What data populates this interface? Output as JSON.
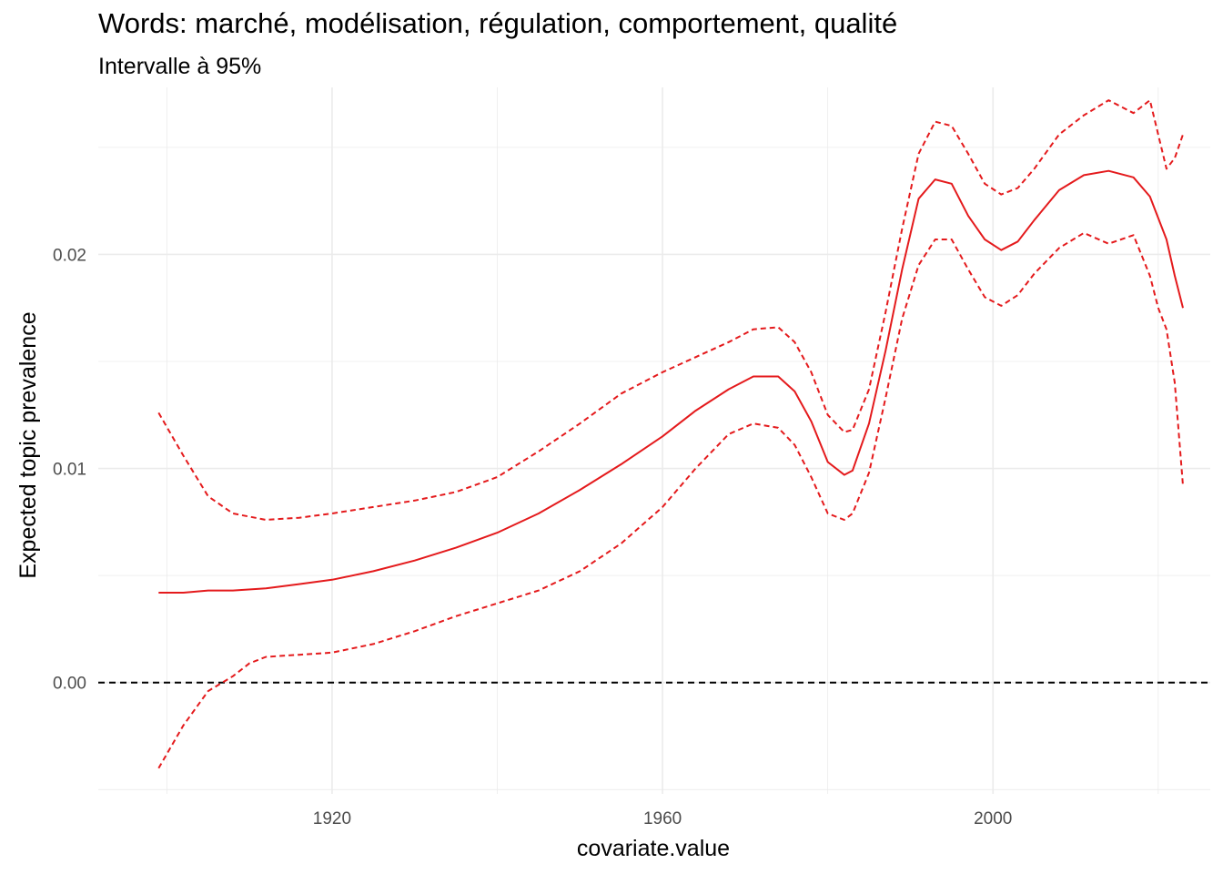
{
  "chart_data": {
    "type": "line",
    "title": "Words: marché, modélisation, régulation, comportement, qualité",
    "subtitle": "Intervalle à 95%",
    "xlabel": "covariate.value",
    "ylabel": "Expected topic prevalence",
    "xlim": [
      1891.7,
      2026.3
    ],
    "ylim": [
      -0.0052,
      0.0278
    ],
    "x_ticks": [
      {
        "value": 1920,
        "label": "1920"
      },
      {
        "value": 1960,
        "label": "1960"
      },
      {
        "value": 2000,
        "label": "2000"
      }
    ],
    "y_ticks": [
      {
        "value": 0.0,
        "label": "0.00"
      },
      {
        "value": 0.01,
        "label": "0.01"
      },
      {
        "value": 0.02,
        "label": "0.02"
      }
    ],
    "x_minor": [
      1900,
      1940,
      1980,
      2020
    ],
    "y_minor": [
      -0.005,
      0.005,
      0.015,
      0.025
    ],
    "grid": true,
    "reference_line": {
      "y": 0,
      "style": "dashed",
      "color": "#000000"
    },
    "colors": {
      "series": "#e41a1c",
      "grid": "#ebebeb",
      "background": "#ffffff"
    },
    "series": [
      {
        "role": "estimate",
        "style": "solid",
        "x": [
          1899,
          1902,
          1905,
          1908,
          1912,
          1916,
          1920,
          1925,
          1930,
          1935,
          1940,
          1945,
          1950,
          1955,
          1960,
          1964,
          1968,
          1971,
          1974,
          1976,
          1978,
          1980,
          1982,
          1983,
          1985,
          1987,
          1989,
          1991,
          1993,
          1995,
          1997,
          1999,
          2001,
          2003,
          2005,
          2008,
          2011,
          2014,
          2017,
          2019,
          2021,
          2022,
          2023
        ],
        "values": [
          0.0042,
          0.0042,
          0.0043,
          0.0043,
          0.0044,
          0.0046,
          0.0048,
          0.0052,
          0.0057,
          0.0063,
          0.007,
          0.0079,
          0.009,
          0.0102,
          0.0115,
          0.0127,
          0.0137,
          0.0143,
          0.0143,
          0.0136,
          0.0122,
          0.0103,
          0.0097,
          0.0099,
          0.0121,
          0.0155,
          0.0193,
          0.0226,
          0.0235,
          0.0233,
          0.0218,
          0.0207,
          0.0202,
          0.0206,
          0.0216,
          0.023,
          0.0237,
          0.0239,
          0.0236,
          0.0227,
          0.0207,
          0.019,
          0.0175
        ]
      },
      {
        "role": "upper 95%",
        "style": "dashed",
        "x": [
          1899,
          1902,
          1905,
          1908,
          1912,
          1916,
          1920,
          1925,
          1930,
          1935,
          1940,
          1945,
          1950,
          1955,
          1960,
          1964,
          1968,
          1971,
          1974,
          1976,
          1978,
          1980,
          1982,
          1983,
          1985,
          1987,
          1989,
          1991,
          1993,
          1995,
          1997,
          1999,
          2001,
          2003,
          2005,
          2008,
          2011,
          2014,
          2015,
          2017,
          2019,
          2021,
          2022,
          2023
        ],
        "values": [
          0.0126,
          0.0106,
          0.0087,
          0.0079,
          0.0076,
          0.0077,
          0.0079,
          0.0082,
          0.0085,
          0.0089,
          0.0096,
          0.0108,
          0.0121,
          0.0135,
          0.0145,
          0.0152,
          0.0159,
          0.0165,
          0.0166,
          0.0159,
          0.0145,
          0.0125,
          0.0117,
          0.0118,
          0.0137,
          0.0173,
          0.0212,
          0.0247,
          0.0262,
          0.026,
          0.0247,
          0.0233,
          0.0228,
          0.0231,
          0.024,
          0.0256,
          0.0265,
          0.0272,
          0.027,
          0.0266,
          0.0272,
          0.024,
          0.0245,
          0.0256
        ]
      },
      {
        "role": "lower 95%",
        "style": "dashed",
        "x": [
          1899,
          1902,
          1905,
          1908,
          1910,
          1912,
          1916,
          1920,
          1925,
          1930,
          1935,
          1940,
          1945,
          1950,
          1955,
          1960,
          1964,
          1968,
          1971,
          1974,
          1976,
          1978,
          1980,
          1982,
          1983,
          1985,
          1987,
          1989,
          1991,
          1993,
          1995,
          1997,
          1999,
          2001,
          2003,
          2005,
          2008,
          2011,
          2014,
          2017,
          2019,
          2020,
          2021,
          2022,
          2023
        ],
        "values": [
          -0.004,
          -0.002,
          -0.0004,
          0.0003,
          0.0009,
          0.0012,
          0.0013,
          0.0014,
          0.0018,
          0.0024,
          0.0031,
          0.0037,
          0.0043,
          0.0052,
          0.0065,
          0.0082,
          0.01,
          0.0116,
          0.0121,
          0.0119,
          0.0111,
          0.0096,
          0.0079,
          0.0076,
          0.0079,
          0.0098,
          0.0133,
          0.017,
          0.0195,
          0.0207,
          0.0207,
          0.0193,
          0.018,
          0.0176,
          0.0181,
          0.0191,
          0.0203,
          0.021,
          0.0205,
          0.0209,
          0.019,
          0.0175,
          0.0165,
          0.014,
          0.0092
        ]
      }
    ]
  }
}
